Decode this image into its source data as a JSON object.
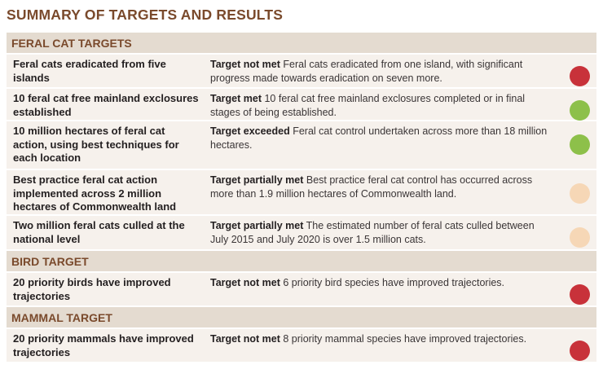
{
  "title": "SUMMARY OF TARGETS AND RESULTS",
  "colors": {
    "met": "#8dc04a",
    "not_met": "#c8323a",
    "partially_met": "#f6d7b6"
  },
  "sections": [
    {
      "heading": "FERAL CAT TARGETS",
      "rows": [
        {
          "target": "Feral cats eradicated from five islands",
          "status": "Target not met",
          "result": "Feral cats eradicated from one island, with significant progress made towards eradication on seven more.",
          "indicator": "red"
        },
        {
          "target": "10 feral cat free mainland exclosures established",
          "status": "Target met",
          "result": "10 feral cat free mainland exclosures completed or in final stages of being established.",
          "indicator": "green"
        },
        {
          "target": "10 million hectares of feral cat action, using best techniques for each location",
          "status": "Target exceeded",
          "result": "Feral cat control undertaken across more than 18 million hectares.",
          "indicator": "green"
        },
        {
          "target": "Best practice feral cat action implemented across 2 million hectares of Commonwealth land",
          "status": "Target partially met",
          "result": "Best practice feral cat control has occurred across more than 1.9 million hectares of Commonwealth land.",
          "indicator": "peach"
        },
        {
          "target": "Two million feral cats culled at the national level",
          "status": "Target partially met",
          "result": "The estimated number of feral cats culled between July 2015 and July 2020 is over 1.5 million cats.",
          "indicator": "peach"
        }
      ]
    },
    {
      "heading": "BIRD TARGET",
      "rows": [
        {
          "target": "20 priority birds have improved trajectories",
          "status": "Target not met",
          "result": "6 priority bird species have improved trajectories.",
          "indicator": "red"
        }
      ]
    },
    {
      "heading": "MAMMAL TARGET",
      "rows": [
        {
          "target": "20 priority mammals have improved trajectories",
          "status": "Target not met",
          "result": "8 priority mammal species have improved trajectories.",
          "indicator": "red"
        }
      ]
    }
  ]
}
